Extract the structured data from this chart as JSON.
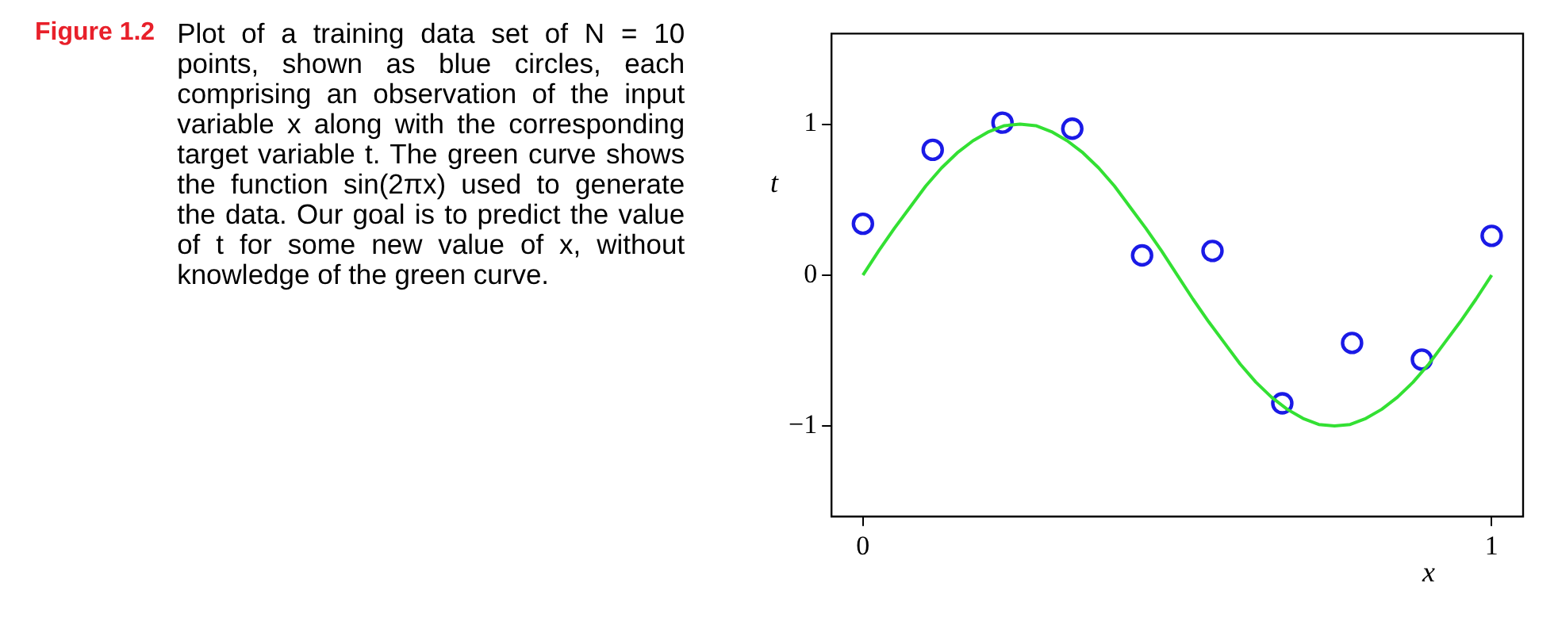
{
  "chart_data": {
    "type": "scatter",
    "title": "Figure 1.2",
    "annotations": [
      "Plot of a training data set of N = 10 points, shown as blue circles, each comprising an observation of the input variable x along with the corresponding target variable t. The green curve shows the function sin(2πx) used to generate the data. Our goal is to predict the value of t for some new value of x, without knowledge of the green curve."
    ],
    "xlabel": "x",
    "ylabel": "t",
    "xlim": [
      -0.05,
      1.05
    ],
    "ylim": [
      -1.6,
      1.6
    ],
    "xticks": [
      0,
      1
    ],
    "yticks": [
      -1,
      0,
      1
    ],
    "grid": false,
    "legend": false,
    "series": [
      {
        "type": "line",
        "color": "#33e033",
        "marker": "none",
        "x": [
          0,
          0.025,
          0.05,
          0.075,
          0.1,
          0.125,
          0.15,
          0.175,
          0.2,
          0.225,
          0.25,
          0.275,
          0.3,
          0.325,
          0.35,
          0.375,
          0.4,
          0.425,
          0.45,
          0.475,
          0.5,
          0.525,
          0.55,
          0.575,
          0.6,
          0.625,
          0.65,
          0.675,
          0.7,
          0.725,
          0.75,
          0.775,
          0.8,
          0.825,
          0.85,
          0.875,
          0.9,
          0.925,
          0.95,
          0.975,
          1
        ],
        "values": [
          0,
          0.16,
          0.31,
          0.45,
          0.59,
          0.71,
          0.81,
          0.89,
          0.95,
          0.99,
          1,
          0.99,
          0.95,
          0.89,
          0.81,
          0.71,
          0.59,
          0.45,
          0.31,
          0.16,
          0,
          -0.16,
          -0.31,
          -0.45,
          -0.59,
          -0.71,
          -0.81,
          -0.89,
          -0.95,
          -0.99,
          -1,
          -0.99,
          -0.95,
          -0.89,
          -0.81,
          -0.71,
          -0.59,
          -0.45,
          -0.31,
          -0.16,
          0
        ]
      },
      {
        "type": "scatter",
        "color": "#1a1ae6",
        "marker": "circle",
        "x": [
          0,
          0.111,
          0.222,
          0.333,
          0.444,
          0.556,
          0.667,
          0.778,
          0.889,
          1
        ],
        "values": [
          0.34,
          0.83,
          1.01,
          0.97,
          0.13,
          0.16,
          -0.85,
          -0.45,
          -0.56,
          0.26
        ]
      }
    ]
  }
}
